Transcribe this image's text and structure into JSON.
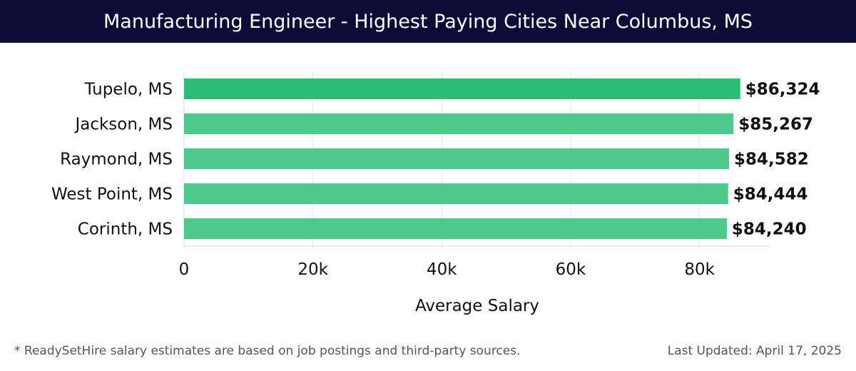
{
  "header": {
    "title": "Manufacturing Engineer - Highest Paying Cities Near Columbus, MS"
  },
  "chart_data": {
    "type": "bar",
    "orientation": "horizontal",
    "categories": [
      "Tupelo, MS",
      "Jackson, MS",
      "Raymond, MS",
      "West Point, MS",
      "Corinth, MS"
    ],
    "values": [
      86324,
      85267,
      84582,
      84444,
      84240
    ],
    "value_labels": [
      "$86,324",
      "$85,267",
      "$84,582",
      "$84,444",
      "$84,240"
    ],
    "xlabel": "Average Salary",
    "ylabel": "",
    "xlim": [
      0,
      91000
    ],
    "x_ticks": [
      0,
      20000,
      40000,
      60000,
      80000
    ],
    "x_tick_labels": [
      "0",
      "20k",
      "40k",
      "60k",
      "80k"
    ],
    "grid": true,
    "colors": {
      "first_bar": "#2bbd74",
      "other_bars": "#4dc98d",
      "grid": "#e6e6e6"
    }
  },
  "footer": {
    "note": "* ReadySetHire salary estimates are based on job postings and third-party sources.",
    "updated": "Last Updated: April 17, 2025"
  }
}
